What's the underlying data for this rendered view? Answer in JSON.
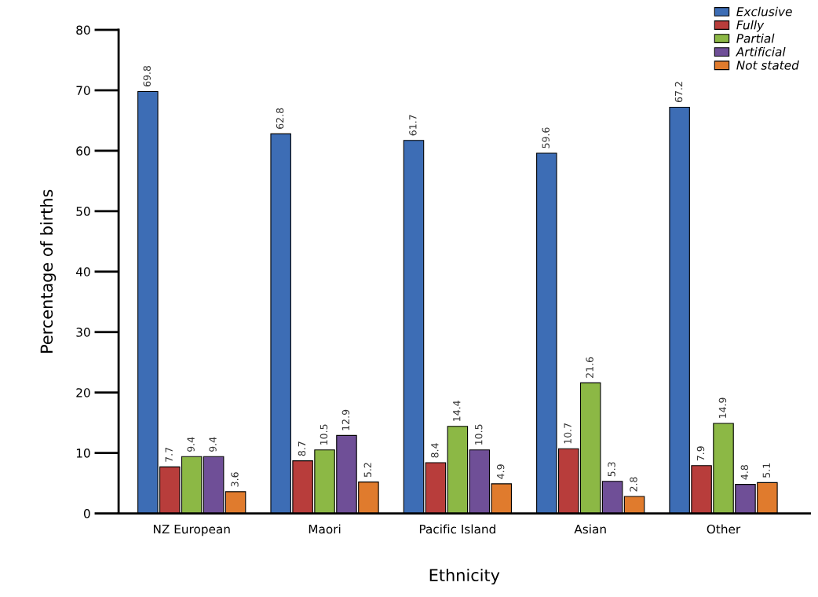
{
  "chart_data": {
    "type": "bar",
    "xlabel": "Ethnicity",
    "ylabel": "Percentage of births",
    "categories": [
      "NZ European",
      "Maori",
      "Pacific Island",
      "Asian",
      "Other"
    ],
    "series": [
      {
        "name": "Exclusive",
        "color": "#3d6db5",
        "values": [
          69.8,
          62.8,
          61.7,
          59.6,
          67.2
        ]
      },
      {
        "name": "Fully",
        "color": "#b83d3b",
        "values": [
          7.7,
          8.7,
          8.4,
          10.7,
          7.9
        ]
      },
      {
        "name": "Partial",
        "color": "#8cb845",
        "values": [
          9.4,
          10.5,
          14.4,
          21.6,
          14.9
        ]
      },
      {
        "name": "Artificial",
        "color": "#6f4f97",
        "values": [
          9.4,
          12.9,
          10.5,
          5.3,
          4.8
        ]
      },
      {
        "name": "Not stated",
        "color": "#e07b2d",
        "values": [
          3.6,
          5.2,
          4.9,
          2.8,
          5.1
        ]
      }
    ],
    "ylim": [
      0,
      80
    ],
    "yticks": [
      0,
      10,
      20,
      30,
      40,
      50,
      60,
      70,
      80
    ],
    "data_labels": true,
    "legend": "top right",
    "grid": false
  }
}
